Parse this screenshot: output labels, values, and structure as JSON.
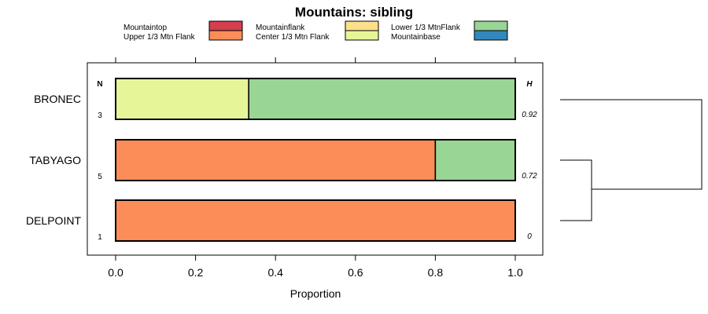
{
  "chart_data": {
    "type": "bar",
    "orientation": "horizontal",
    "stacked": true,
    "title": "Mountains: sibling",
    "xlabel": "Proportion",
    "ylabel": "",
    "xlim": [
      0,
      1
    ],
    "x_ticks": [
      "0.0",
      "0.2",
      "0.4",
      "0.6",
      "0.8",
      "1.0"
    ],
    "grid": false,
    "legend_position": "top",
    "n_header": "N",
    "h_header": "H",
    "categories": [
      "BRONEC",
      "TABYAGO",
      "DELPOINT"
    ],
    "n_values": [
      "3",
      "5",
      "1"
    ],
    "h_values": [
      "0.92",
      "0.72",
      "0"
    ],
    "series": [
      {
        "name": "Mountaintop",
        "color": "#d53e4f",
        "values": [
          0,
          0,
          0
        ]
      },
      {
        "name": "Upper 1/3 Mtn Flank",
        "color": "#fc8d59",
        "values": [
          0,
          0.8,
          1.0
        ]
      },
      {
        "name": "Mountainflank",
        "color": "#fee08b",
        "values": [
          0,
          0,
          0
        ]
      },
      {
        "name": "Center 1/3 Mtn Flank",
        "color": "#e6f598",
        "values": [
          0.333,
          0,
          0
        ]
      },
      {
        "name": "Lower 1/3 MtnFlank",
        "color": "#99d594",
        "values": [
          0.667,
          0.2,
          0
        ]
      },
      {
        "name": "Mountainbase",
        "color": "#3288bd",
        "values": [
          0,
          0,
          0
        ]
      }
    ],
    "dendrogram": "TABYAGO and DELPOINT join first; BRONEC joins at the top"
  }
}
